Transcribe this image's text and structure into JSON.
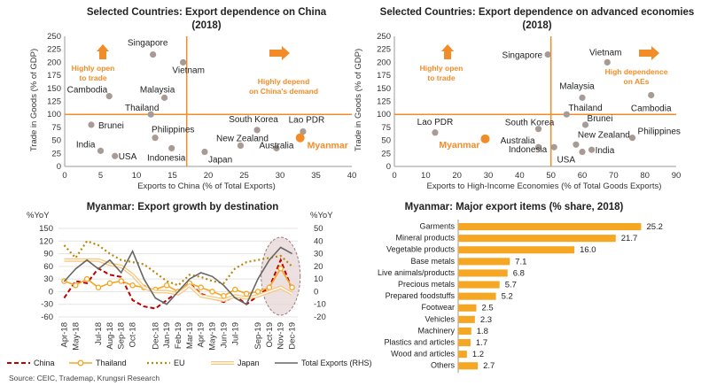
{
  "source": "Source: CEIC, Trademap, Krungsri Research",
  "chart_data": [
    {
      "type": "scatter",
      "title_line1": "Selected Countries: Export dependence on China",
      "title_line2": "(2018)",
      "xlabel": "Exports to China (% of Total Exports)",
      "ylabel": "Trade in Goods (% of GDP)",
      "xlim": [
        0,
        40
      ],
      "ylim": [
        0,
        250
      ],
      "xticks": [
        "0",
        "5",
        "10",
        "15",
        "20",
        "25",
        "30",
        "35",
        "40"
      ],
      "yticks": [
        "0",
        "25",
        "50",
        "75",
        "100",
        "125",
        "150",
        "175",
        "200",
        "225",
        "250"
      ],
      "ref_x": 17,
      "ref_y": 100,
      "annotations": {
        "left": [
          "Highly open",
          "to trade"
        ],
        "right": [
          "Highly depend",
          "on China's demand"
        ]
      },
      "points": [
        {
          "label": "Singapore",
          "x": 12.3,
          "y": 215
        },
        {
          "label": "Vietnam",
          "x": 16.5,
          "y": 200
        },
        {
          "label": "Cambodia",
          "x": 6.2,
          "y": 135
        },
        {
          "label": "Malaysia",
          "x": 13.9,
          "y": 132
        },
        {
          "label": "Thailand",
          "x": 12,
          "y": 100
        },
        {
          "label": "Brunei",
          "x": 3.7,
          "y": 80
        },
        {
          "label": "Philippines",
          "x": 12.6,
          "y": 55
        },
        {
          "label": "India",
          "x": 5,
          "y": 30
        },
        {
          "label": "USA",
          "x": 7,
          "y": 20
        },
        {
          "label": "Indonesia",
          "x": 14.9,
          "y": 35
        },
        {
          "label": "Japan",
          "x": 19.5,
          "y": 28
        },
        {
          "label": "South Korea",
          "x": 26.8,
          "y": 70
        },
        {
          "label": "New Zealand",
          "x": 24.5,
          "y": 40
        },
        {
          "label": "Australia",
          "x": 29.5,
          "y": 35
        },
        {
          "label": "Lao PDR",
          "x": 33.2,
          "y": 67
        },
        {
          "label": "Myanmar",
          "x": 32.8,
          "y": 55,
          "highlight": true
        }
      ]
    },
    {
      "type": "scatter",
      "title_line1": "Selected Countries: Export dependence on advanced economies",
      "title_line2": "(2018)",
      "xlabel": "Exports to High-Income Economies (% of Total Goods Exports)",
      "ylabel": "Trade in Goods (% of GDP)",
      "xlim": [
        0,
        90
      ],
      "ylim": [
        0,
        250
      ],
      "xticks": [
        "0",
        "10",
        "20",
        "30",
        "40",
        "50",
        "60",
        "70",
        "80",
        "90"
      ],
      "yticks": [
        "0",
        "25",
        "50",
        "75",
        "100",
        "125",
        "150",
        "175",
        "200",
        "225",
        "250"
      ],
      "ref_x": 50,
      "ref_y": 100,
      "annotations": {
        "left": [
          "Highly open",
          "to trade"
        ],
        "right": [
          "High dependence",
          "on AEs"
        ]
      },
      "points": [
        {
          "label": "Singapore",
          "x": 49,
          "y": 215
        },
        {
          "label": "Vietnam",
          "x": 68,
          "y": 200
        },
        {
          "label": "Malaysia",
          "x": 60,
          "y": 132
        },
        {
          "label": "Cambodia",
          "x": 82,
          "y": 137
        },
        {
          "label": "Thailand",
          "x": 55,
          "y": 100
        },
        {
          "label": "Brunei",
          "x": 61,
          "y": 80
        },
        {
          "label": "South Korea",
          "x": 46,
          "y": 72
        },
        {
          "label": "Philippines",
          "x": 76,
          "y": 55
        },
        {
          "label": "Lao PDR",
          "x": 13,
          "y": 65
        },
        {
          "label": "New Zealand",
          "x": 58,
          "y": 42
        },
        {
          "label": "Australia",
          "x": 46,
          "y": 37
        },
        {
          "label": "Indonesia",
          "x": 51,
          "y": 37
        },
        {
          "label": "USA",
          "x": 60,
          "y": 28
        },
        {
          "label": "India",
          "x": 63,
          "y": 32
        },
        {
          "label": "Myanmar",
          "x": 29,
          "y": 53,
          "highlight": true
        }
      ]
    },
    {
      "type": "line",
      "title": "Myanmar: Export growth by destination",
      "ylabel_left": "%YoY",
      "ylabel_right": "%YoY",
      "ylim_left": [
        -60,
        150
      ],
      "ylim_right": [
        -20,
        50
      ],
      "yticks_left": [
        "150",
        "120",
        "90",
        "60",
        "30",
        "0",
        "-30",
        "-60"
      ],
      "yticks_right": [
        "50",
        "40",
        "30",
        "20",
        "10",
        "0",
        "-10",
        "-20"
      ],
      "categories": [
        "Apr-18",
        "May-18",
        "Jun-18",
        "Jul-18",
        "Aug-18",
        "Sep-18",
        "Oct-18",
        "Nov-18",
        "Dec-18",
        "Jan-19",
        "Feb-19",
        "Mar-19",
        "Apr-19",
        "May-19",
        "Jun-19",
        "Jul-19",
        "Aug-19",
        "Sep-19",
        "Oct-19",
        "Nov-19",
        "Dec-19"
      ],
      "tick_labels": [
        "Apr-18",
        "May-18",
        "Jul-18",
        "Aug-18",
        "Sep-18",
        "Oct-18",
        "Dec-18",
        "Jan-19",
        "Feb-19",
        "Mar-19",
        "Apr-19",
        "May-19",
        "Jun-19",
        "Jul-19",
        "Sep-19",
        "Oct-19",
        "Nov-19",
        "Dec-19"
      ],
      "series": [
        {
          "name": "China",
          "axis": "left",
          "color": "#C00000",
          "dash": "5,3",
          "width": 2,
          "values": [
            -15,
            25,
            20,
            55,
            40,
            35,
            -20,
            -35,
            -40,
            -20,
            0,
            20,
            -5,
            -15,
            -25,
            -10,
            -30,
            -10,
            10,
            75,
            5
          ]
        },
        {
          "name": "Thailand",
          "axis": "left",
          "color": "#F5A623",
          "width": 1.6,
          "marker": true,
          "values": [
            25,
            15,
            30,
            10,
            20,
            25,
            15,
            10,
            5,
            15,
            0,
            20,
            10,
            0,
            -10,
            5,
            -5,
            0,
            10,
            55,
            10
          ]
        },
        {
          "name": "EU",
          "axis": "left",
          "color": "#B8860B",
          "dash": "2,3",
          "width": 2.2,
          "values": [
            110,
            80,
            120,
            110,
            90,
            75,
            70,
            65,
            45,
            25,
            15,
            40,
            35,
            25,
            20,
            55,
            70,
            75,
            80,
            85,
            60
          ]
        },
        {
          "name": "Japan",
          "axis": "left",
          "color": "#F7C77E",
          "double": true,
          "width": 4,
          "values": [
            75,
            75,
            75,
            75,
            65,
            60,
            40,
            10,
            0,
            0,
            -5,
            15,
            -10,
            -15,
            -20,
            -10,
            -15,
            -10,
            0,
            10,
            -5
          ]
        },
        {
          "name": "Total Exports (RHS)",
          "axis": "right",
          "color": "#666666",
          "width": 1.6,
          "values": [
            8,
            18,
            25,
            18,
            25,
            15,
            32,
            10,
            -5,
            -10,
            0,
            10,
            15,
            12,
            5,
            -5,
            -10,
            10,
            25,
            35,
            30
          ]
        }
      ]
    },
    {
      "type": "bar",
      "title": "Myanmar: Major export items (% share, 2018)",
      "xlim": [
        0,
        26
      ],
      "categories": [
        "Garments",
        "Mineral products",
        "Vegetable products",
        "Base metals",
        "Live animals/products",
        "Precious metals",
        "Prepared foodstuffs",
        "Footwear",
        "Vehicles",
        "Machinery",
        "Plastics and articles",
        "Wood and articles",
        "Others"
      ],
      "values": [
        25.2,
        21.7,
        16.0,
        7.1,
        6.8,
        5.7,
        5.2,
        2.5,
        2.3,
        1.8,
        1.7,
        1.2,
        2.7
      ],
      "value_labels": [
        "25.2",
        "21.7",
        "16.0",
        "7.1",
        "6.8",
        "5.7",
        "5.2",
        "2.5",
        "2.3",
        "1.8",
        "1.7",
        "1.2",
        "2.7"
      ],
      "color": "#F5A623"
    }
  ],
  "colors": {
    "accent": "#F28C28",
    "ref_line": "#F28C28",
    "point": "#A89A95"
  }
}
